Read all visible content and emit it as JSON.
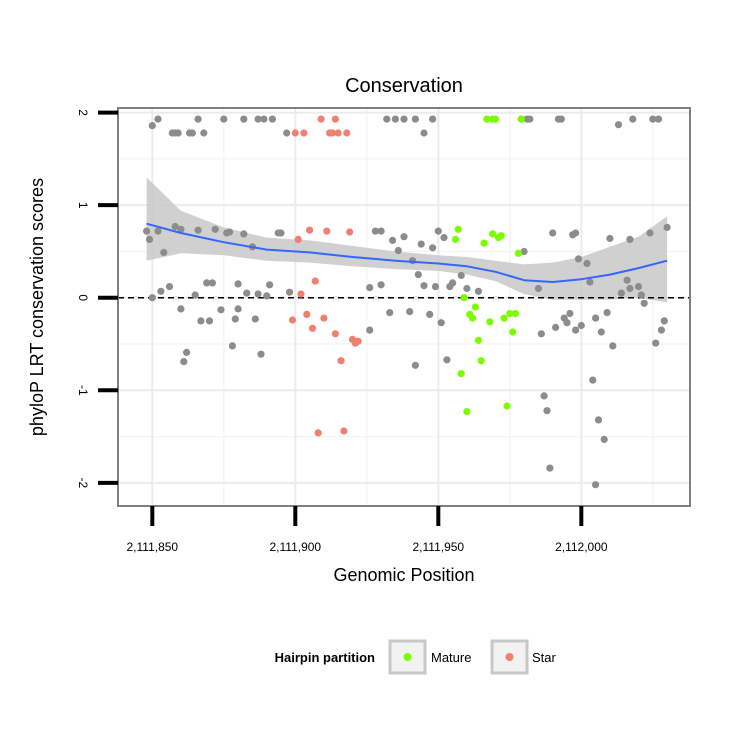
{
  "chart_data": {
    "type": "scatter",
    "title": "Conservation",
    "xlabel": "Genomic Position",
    "ylabel": "phyloP LRT conservation scores",
    "xlim": [
      2111838,
      2112038
    ],
    "ylim": [
      -2.25,
      2.05
    ],
    "x_ticks": [
      2111850,
      2111900,
      2111950,
      2112000
    ],
    "x_tick_labels": [
      "2,111,850",
      "2,111,900",
      "2,111,950",
      "2,112,000"
    ],
    "y_ticks": [
      -2,
      -1,
      0,
      1,
      2
    ],
    "y_tick_labels": [
      "-2",
      "-1",
      "0",
      "1",
      "2"
    ],
    "grid": true,
    "reference_line": {
      "y": 0,
      "style": "dashed"
    },
    "legend": {
      "title": "Hairpin partition",
      "placement": "bottom",
      "entries": [
        {
          "label": "Mature",
          "color": "#7cfc00"
        },
        {
          "label": "Star",
          "color": "#f08070"
        }
      ]
    },
    "colors": {
      "other": "#8c8c8c",
      "Mature": "#7cfc00",
      "Star": "#f08070",
      "smooth": "#3366ff",
      "ribbon": "#c8c8c8"
    },
    "series": [
      {
        "name": "Other",
        "points": [
          [
            2111848,
            0.72
          ],
          [
            2111849,
            0.63
          ],
          [
            2111850,
            0.0
          ],
          [
            2111850,
            1.86
          ],
          [
            2111852,
            1.93
          ],
          [
            2111852,
            0.72
          ],
          [
            2111853,
            0.07
          ],
          [
            2111854,
            0.49
          ],
          [
            2111856,
            0.12
          ],
          [
            2111857,
            1.78
          ],
          [
            2111858,
            0.77
          ],
          [
            2111858,
            1.78
          ],
          [
            2111859,
            1.78
          ],
          [
            2111860,
            0.74
          ],
          [
            2111860,
            -0.12
          ],
          [
            2111861,
            -0.69
          ],
          [
            2111862,
            -0.59
          ],
          [
            2111863,
            1.78
          ],
          [
            2111864,
            1.78
          ],
          [
            2111865,
            0.03
          ],
          [
            2111866,
            0.73
          ],
          [
            2111866,
            1.93
          ],
          [
            2111867,
            -0.25
          ],
          [
            2111868,
            1.78
          ],
          [
            2111869,
            0.16
          ],
          [
            2111870,
            -0.25
          ],
          [
            2111871,
            0.16
          ],
          [
            2111872,
            0.74
          ],
          [
            2111874,
            -0.13
          ],
          [
            2111875,
            1.93
          ],
          [
            2111876,
            0.7
          ],
          [
            2111877,
            0.71
          ],
          [
            2111878,
            -0.52
          ],
          [
            2111879,
            -0.23
          ],
          [
            2111880,
            -0.12
          ],
          [
            2111880,
            0.15
          ],
          [
            2111882,
            0.69
          ],
          [
            2111882,
            1.93
          ],
          [
            2111883,
            0.05
          ],
          [
            2111885,
            0.55
          ],
          [
            2111886,
            -0.23
          ],
          [
            2111887,
            0.04
          ],
          [
            2111887,
            1.93
          ],
          [
            2111888,
            -0.61
          ],
          [
            2111889,
            1.93
          ],
          [
            2111890,
            0.02
          ],
          [
            2111891,
            0.14
          ],
          [
            2111892,
            1.93
          ],
          [
            2111894,
            0.7
          ],
          [
            2111895,
            0.7
          ],
          [
            2111897,
            1.78
          ],
          [
            2111898,
            0.06
          ],
          [
            2111926,
            -0.35
          ],
          [
            2111926,
            0.11
          ],
          [
            2111928,
            0.72
          ],
          [
            2111930,
            0.72
          ],
          [
            2111930,
            0.14
          ],
          [
            2111932,
            1.93
          ],
          [
            2111933,
            -0.16
          ],
          [
            2111934,
            0.62
          ],
          [
            2111935,
            1.93
          ],
          [
            2111936,
            0.51
          ],
          [
            2111938,
            1.93
          ],
          [
            2111938,
            0.66
          ],
          [
            2111940,
            -0.15
          ],
          [
            2111941,
            0.4
          ],
          [
            2111942,
            -0.73
          ],
          [
            2111942,
            1.93
          ],
          [
            2111943,
            0.25
          ],
          [
            2111944,
            0.58
          ],
          [
            2111945,
            1.78
          ],
          [
            2111945,
            0.13
          ],
          [
            2111947,
            -0.18
          ],
          [
            2111948,
            0.54
          ],
          [
            2111948,
            1.93
          ],
          [
            2111949,
            0.12
          ],
          [
            2111950,
            0.72
          ],
          [
            2111951,
            -0.27
          ],
          [
            2111952,
            0.65
          ],
          [
            2111953,
            -0.67
          ],
          [
            2111954,
            0.12
          ],
          [
            2111955,
            0.16
          ],
          [
            2111958,
            0.24
          ],
          [
            2111960,
            0.1
          ],
          [
            2111964,
            0.07
          ],
          [
            2111979,
            1.93
          ],
          [
            2111980,
            0.5
          ],
          [
            2111981,
            1.93
          ],
          [
            2111982,
            1.93
          ],
          [
            2111985,
            0.1
          ],
          [
            2111986,
            -0.39
          ],
          [
            2111987,
            -1.06
          ],
          [
            2111988,
            -1.22
          ],
          [
            2111989,
            -1.84
          ],
          [
            2111990,
            0.7
          ],
          [
            2111991,
            -0.32
          ],
          [
            2111992,
            1.93
          ],
          [
            2111993,
            1.93
          ],
          [
            2111994,
            -0.22
          ],
          [
            2111995,
            -0.27
          ],
          [
            2111996,
            -0.17
          ],
          [
            2111997,
            0.68
          ],
          [
            2111998,
            0.7
          ],
          [
            2111998,
            -0.35
          ],
          [
            2111999,
            0.42
          ],
          [
            2112000,
            -0.3
          ],
          [
            2112002,
            0.37
          ],
          [
            2112003,
            0.17
          ],
          [
            2112004,
            -0.89
          ],
          [
            2112005,
            -2.02
          ],
          [
            2112005,
            -0.22
          ],
          [
            2112006,
            -1.32
          ],
          [
            2112007,
            -0.37
          ],
          [
            2112008,
            -1.53
          ],
          [
            2112009,
            -0.16
          ],
          [
            2112010,
            0.64
          ],
          [
            2112011,
            -0.52
          ],
          [
            2112013,
            1.87
          ],
          [
            2112014,
            0.05
          ],
          [
            2112016,
            0.19
          ],
          [
            2112017,
            0.63
          ],
          [
            2112017,
            0.1
          ],
          [
            2112018,
            1.93
          ],
          [
            2112020,
            0.12
          ],
          [
            2112021,
            0.03
          ],
          [
            2112022,
            -0.06
          ],
          [
            2112024,
            0.7
          ],
          [
            2112025,
            1.93
          ],
          [
            2112026,
            -0.49
          ],
          [
            2112027,
            1.93
          ],
          [
            2112028,
            -0.35
          ],
          [
            2112029,
            -0.25
          ],
          [
            2112030,
            0.76
          ]
        ]
      },
      {
        "name": "Star",
        "points": [
          [
            2111899,
            -0.24
          ],
          [
            2111900,
            1.78
          ],
          [
            2111901,
            0.63
          ],
          [
            2111902,
            0.04
          ],
          [
            2111903,
            1.78
          ],
          [
            2111904,
            -0.18
          ],
          [
            2111905,
            0.73
          ],
          [
            2111906,
            -0.33
          ],
          [
            2111907,
            0.18
          ],
          [
            2111908,
            -1.46
          ],
          [
            2111909,
            1.93
          ],
          [
            2111910,
            -0.22
          ],
          [
            2111911,
            0.72
          ],
          [
            2111912,
            1.78
          ],
          [
            2111913,
            1.78
          ],
          [
            2111914,
            1.93
          ],
          [
            2111914,
            -0.39
          ],
          [
            2111915,
            1.78
          ],
          [
            2111916,
            -0.68
          ],
          [
            2111917,
            -1.44
          ],
          [
            2111918,
            1.78
          ],
          [
            2111919,
            0.71
          ],
          [
            2111920,
            -0.45
          ],
          [
            2111921,
            -0.49
          ],
          [
            2111922,
            -0.47
          ]
        ]
      },
      {
        "name": "Mature",
        "points": [
          [
            2111956,
            0.63
          ],
          [
            2111957,
            0.74
          ],
          [
            2111958,
            -0.82
          ],
          [
            2111959,
            0.0
          ],
          [
            2111960,
            -1.23
          ],
          [
            2111961,
            -0.18
          ],
          [
            2111962,
            -0.22
          ],
          [
            2111963,
            -0.1
          ],
          [
            2111964,
            -0.46
          ],
          [
            2111965,
            -0.68
          ],
          [
            2111966,
            0.59
          ],
          [
            2111967,
            1.93
          ],
          [
            2111968,
            -0.26
          ],
          [
            2111969,
            0.69
          ],
          [
            2111969,
            1.93
          ],
          [
            2111970,
            1.93
          ],
          [
            2111971,
            0.65
          ],
          [
            2111972,
            0.67
          ],
          [
            2111973,
            -0.22
          ],
          [
            2111974,
            -1.17
          ],
          [
            2111975,
            -0.17
          ],
          [
            2111976,
            -0.37
          ],
          [
            2111977,
            -0.17
          ],
          [
            2111978,
            0.48
          ],
          [
            2111979,
            1.93
          ]
        ]
      }
    ],
    "smooth_curve": {
      "x": [
        2111848,
        2111860,
        2111875,
        2111890,
        2111905,
        2111920,
        2111935,
        2111950,
        2111960,
        2111970,
        2111980,
        2111990,
        2112000,
        2112010,
        2112020,
        2112030
      ],
      "y": [
        0.8,
        0.7,
        0.6,
        0.52,
        0.49,
        0.44,
        0.4,
        0.37,
        0.34,
        0.28,
        0.19,
        0.17,
        0.2,
        0.25,
        0.32,
        0.4
      ],
      "ci_lower": [
        0.4,
        0.48,
        0.46,
        0.4,
        0.38,
        0.34,
        0.31,
        0.29,
        0.25,
        0.18,
        0.04,
        -0.02,
        -0.02,
        -0.02,
        0.0,
        -0.05
      ],
      "ci_upper": [
        1.3,
        0.94,
        0.76,
        0.65,
        0.62,
        0.56,
        0.5,
        0.46,
        0.44,
        0.4,
        0.36,
        0.38,
        0.44,
        0.55,
        0.66,
        0.88
      ]
    }
  }
}
